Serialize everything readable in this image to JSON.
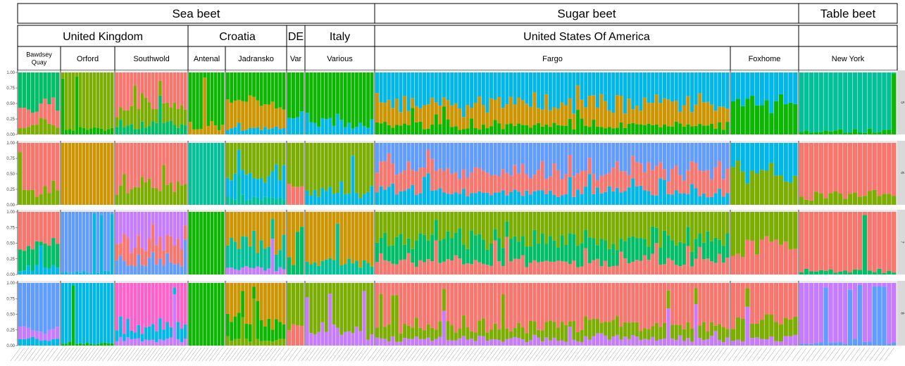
{
  "chart_data": {
    "type": "stacked-bar",
    "y_ticks": [
      "0.00",
      "0.25",
      "0.50",
      "0.75",
      "1.00"
    ],
    "ylim": [
      0,
      1
    ],
    "facets": [
      "5",
      "6",
      "7",
      "8"
    ],
    "colors": {
      "salmon": "#F8766D",
      "gold": "#CD9600",
      "olive": "#7CAE00",
      "green": "#0CB702",
      "teal": "#00BE67",
      "aqua": "#00C19A",
      "cyan": "#00B8E7",
      "blue": "#619CFF",
      "violet": "#C77CFF",
      "pink": "#FF61CC"
    },
    "header_levels": [
      [
        {
          "label": "Sea beet",
          "from": 0,
          "to": 7
        },
        {
          "label": "Sugar beet",
          "from": 7,
          "to": 12
        },
        {
          "label": "Table beet",
          "from": 12,
          "to": 13
        }
      ],
      [
        {
          "label": "United Kingdom",
          "from": 0,
          "to": 3
        },
        {
          "label": "Croatia",
          "from": 3,
          "to": 5
        },
        {
          "label": "DE",
          "from": 5,
          "to": 6
        },
        {
          "label": "Italy",
          "from": 6,
          "to": 7
        },
        {
          "label": "United States Of America",
          "from": 7,
          "to": 12
        },
        {
          "label": "",
          "from": 12,
          "to": 13
        }
      ]
    ],
    "groups": [
      {
        "label": "Bawdsey Quay",
        "lines": [
          "Bawdsey",
          "Quay"
        ],
        "bars": 10,
        "K5": {
          "teal": 0.55,
          "salmon": 0.3,
          "olive": 0.15
        },
        "K6": {
          "salmon": 0.75,
          "olive": 0.25
        },
        "K7": {
          "salmon": 0.55,
          "teal": 0.35,
          "cyan": 0.1
        },
        "K8": {
          "blue": 0.75,
          "violet": 0.15,
          "cyan": 0.1
        }
      },
      {
        "label": "Orford",
        "lines": [
          "Orford"
        ],
        "bars": 15,
        "K5": {
          "olive": 0.9,
          "green": 0.1
        },
        "K6": {
          "gold": 1.0
        },
        "K7": {
          "blue": 0.97,
          "cyan": 0.03
        },
        "K8": {
          "cyan": 0.97,
          "green": 0.03
        }
      },
      {
        "label": "Southwold",
        "lines": [
          "Southwold"
        ],
        "bars": 20,
        "K5": {
          "salmon": 0.55,
          "olive": 0.3,
          "teal": 0.15
        },
        "K6": {
          "salmon": 0.7,
          "olive": 0.3
        },
        "K7": {
          "violet": 0.5,
          "salmon": 0.3,
          "blue": 0.2
        },
        "K8": {
          "pink": 0.7,
          "cyan": 0.2,
          "violet": 0.1
        }
      },
      {
        "label": "Antenal",
        "lines": [
          "Antenal"
        ],
        "bars": 10,
        "K5": {
          "green": 0.9,
          "gold": 0.1
        },
        "K6": {
          "aqua": 1.0
        },
        "K7": {
          "green": 1.0
        },
        "K8": {
          "green": 1.0
        }
      },
      {
        "label": "Jadransko",
        "lines": [
          "Jadransko"
        ],
        "bars": 16,
        "K5": {
          "green": 0.5,
          "gold": 0.4,
          "cyan": 0.1
        },
        "K6": {
          "olive": 0.5,
          "cyan": 0.4,
          "aqua": 0.1
        },
        "K7": {
          "gold": 0.5,
          "aqua": 0.4,
          "violet": 0.1
        },
        "K8": {
          "gold": 0.6,
          "green": 0.3,
          "olive": 0.1
        }
      },
      {
        "label": "Var",
        "lines": [
          "Var"
        ],
        "bars": 4,
        "K5": {
          "green": 0.7,
          "cyan": 0.3
        },
        "K6": {
          "olive": 0.7,
          "salmon": 0.3
        },
        "K7": {
          "gold": 0.7,
          "teal": 0.3
        },
        "K8": {
          "olive": 0.7,
          "salmon": 0.3
        }
      },
      {
        "label": "Various",
        "lines": [
          "Various"
        ],
        "bars": 18,
        "K5": {
          "green": 0.8,
          "cyan": 0.2
        },
        "K6": {
          "olive": 0.8,
          "cyan": 0.2
        },
        "K7": {
          "gold": 0.8,
          "aqua": 0.2
        },
        "K8": {
          "olive": 0.8,
          "violet": 0.2
        }
      },
      {
        "label": "Fargo",
        "lines": [
          "Fargo"
        ],
        "bars": 90,
        "K5": {
          "cyan": 0.5,
          "gold": 0.35,
          "green": 0.15
        },
        "K6": {
          "blue": 0.45,
          "salmon": 0.35,
          "cyan": 0.2
        },
        "K7": {
          "olive": 0.45,
          "teal": 0.35,
          "salmon": 0.2
        },
        "K8": {
          "salmon": 0.7,
          "olive": 0.2,
          "violet": 0.1
        }
      },
      {
        "label": "Foxhome",
        "lines": [
          "Foxhome"
        ],
        "bars": 14,
        "K5": {
          "cyan": 0.5,
          "green": 0.5
        },
        "K6": {
          "cyan": 0.5,
          "olive": 0.5
        },
        "K7": {
          "olive": 0.6,
          "salmon": 0.4
        },
        "K8": {
          "salmon": 0.6,
          "olive": 0.3,
          "violet": 0.1
        }
      },
      {
        "label": "New York",
        "lines": [
          "New York"
        ],
        "bars": 20,
        "K5": {
          "aqua": 0.95,
          "green": 0.05
        },
        "K6": {
          "salmon": 0.85,
          "olive": 0.15
        },
        "K7": {
          "salmon": 0.95,
          "teal": 0.05
        },
        "K8": {
          "violet": 0.95,
          "blue": 0.05
        }
      }
    ]
  }
}
